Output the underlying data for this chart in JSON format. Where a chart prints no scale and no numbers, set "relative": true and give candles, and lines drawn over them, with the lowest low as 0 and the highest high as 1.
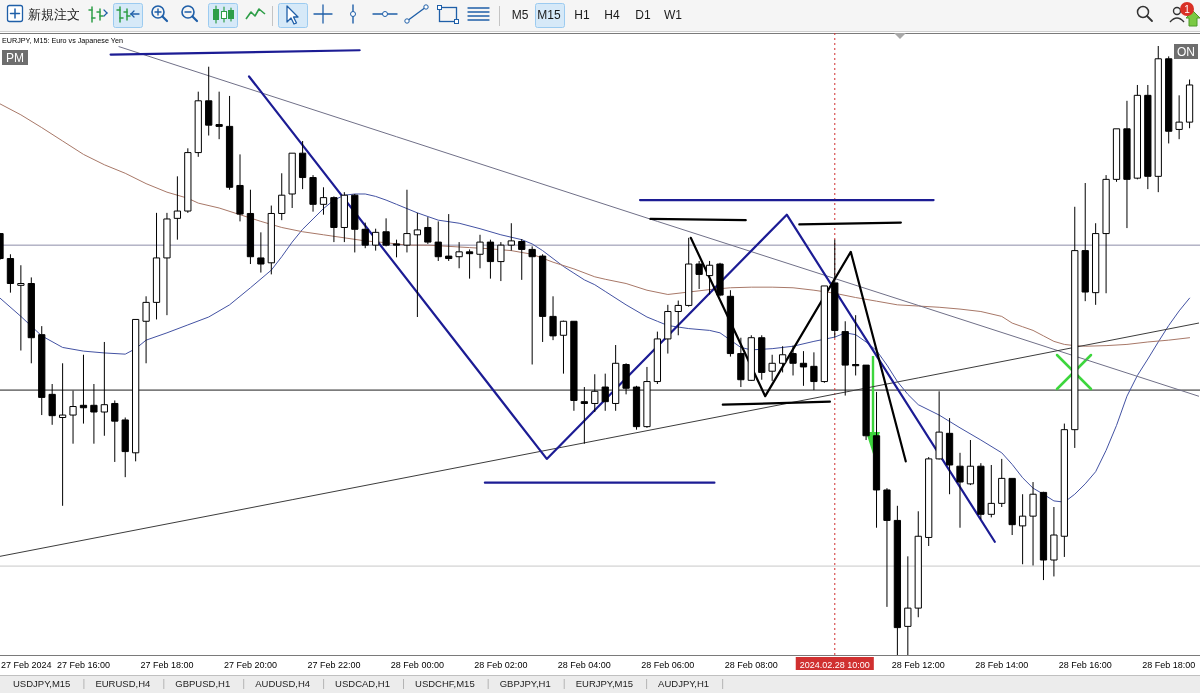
{
  "chart_data": [
    {
      "type": "other",
      "annotations": [
        "新規注文",
        "M5",
        "M15",
        "H1",
        "H4",
        "D1",
        "W1",
        "1"
      ]
    },
    {
      "type": "candlestick",
      "title": "EURJPY, M15: Euro vs Japanese Yen",
      "relative": true,
      "color": "#000000",
      "xlim": [
        "2024-02-27T14:00",
        "2024-02-28T18:45"
      ],
      "xticks": [
        {
          "value": "2024-02-27T14:00",
          "label": "27 Feb 2024"
        },
        {
          "value": "2024-02-27T16:00",
          "label": "27 Feb 16:00"
        },
        {
          "value": "2024-02-27T18:00",
          "label": "27 Feb 18:00"
        },
        {
          "value": "2024-02-27T20:00",
          "label": "27 Feb 20:00"
        },
        {
          "value": "2024-02-27T22:00",
          "label": "27 Feb 22:00"
        },
        {
          "value": "2024-02-28T00:00",
          "label": "28 Feb 00:00"
        },
        {
          "value": "2024-02-28T02:00",
          "label": "28 Feb 02:00"
        },
        {
          "value": "2024-02-28T04:00",
          "label": "28 Feb 04:00"
        },
        {
          "value": "2024-02-28T06:00",
          "label": "28 Feb 06:00"
        },
        {
          "value": "2024-02-28T08:00",
          "label": "28 Feb 08:00"
        },
        {
          "value": "2024-02-28T12:00",
          "label": "28 Feb 12:00"
        },
        {
          "value": "2024-02-28T14:00",
          "label": "28 Feb 14:00"
        },
        {
          "value": "2024-02-28T16:00",
          "label": "28 Feb 16:00"
        },
        {
          "value": "2024-02-28T18:00",
          "label": "28 Feb 18:00"
        }
      ],
      "x": [
        "2024-02-27T14:00",
        "2024-02-27T14:15",
        "2024-02-27T14:30",
        "2024-02-27T14:45",
        "2024-02-27T15:00",
        "2024-02-27T15:15",
        "2024-02-27T15:30",
        "2024-02-27T15:45",
        "2024-02-27T16:00",
        "2024-02-27T16:15",
        "2024-02-27T16:30",
        "2024-02-27T16:45",
        "2024-02-27T17:00",
        "2024-02-27T17:15",
        "2024-02-27T17:30",
        "2024-02-27T17:45",
        "2024-02-27T18:00",
        "2024-02-27T18:15",
        "2024-02-27T18:30",
        "2024-02-27T18:45",
        "2024-02-27T19:00",
        "2024-02-27T19:15",
        "2024-02-27T19:30",
        "2024-02-27T19:45",
        "2024-02-27T20:00",
        "2024-02-27T20:15",
        "2024-02-27T20:30",
        "2024-02-27T20:45",
        "2024-02-27T21:00",
        "2024-02-27T21:15",
        "2024-02-27T21:30",
        "2024-02-27T21:45",
        "2024-02-27T22:00",
        "2024-02-27T22:15",
        "2024-02-27T22:30",
        "2024-02-27T22:45",
        "2024-02-27T23:00",
        "2024-02-27T23:15",
        "2024-02-27T23:30",
        "2024-02-27T23:45",
        "2024-02-28T00:00",
        "2024-02-28T00:15",
        "2024-02-28T00:30",
        "2024-02-28T00:45",
        "2024-02-28T01:00",
        "2024-02-28T01:15",
        "2024-02-28T01:30",
        "2024-02-28T01:45",
        "2024-02-28T02:00",
        "2024-02-28T02:15",
        "2024-02-28T02:30",
        "2024-02-28T02:45",
        "2024-02-28T03:00",
        "2024-02-28T03:15",
        "2024-02-28T03:30",
        "2024-02-28T03:45",
        "2024-02-28T04:00",
        "2024-02-28T04:15",
        "2024-02-28T04:30",
        "2024-02-28T04:45",
        "2024-02-28T05:00",
        "2024-02-28T05:15",
        "2024-02-28T05:30",
        "2024-02-28T05:45",
        "2024-02-28T06:00",
        "2024-02-28T06:15",
        "2024-02-28T06:30",
        "2024-02-28T06:45",
        "2024-02-28T07:00",
        "2024-02-28T07:15",
        "2024-02-28T07:30",
        "2024-02-28T07:45",
        "2024-02-28T08:00",
        "2024-02-28T08:15",
        "2024-02-28T08:30",
        "2024-02-28T08:45",
        "2024-02-28T09:00",
        "2024-02-28T09:15",
        "2024-02-28T09:30",
        "2024-02-28T09:45",
        "2024-02-28T10:00",
        "2024-02-28T10:15",
        "2024-02-28T10:30",
        "2024-02-28T10:45",
        "2024-02-28T11:00",
        "2024-02-28T11:15",
        "2024-02-28T11:30",
        "2024-02-28T11:45",
        "2024-02-28T12:00",
        "2024-02-28T12:15",
        "2024-02-28T12:30",
        "2024-02-28T12:45",
        "2024-02-28T13:00",
        "2024-02-28T13:15",
        "2024-02-28T13:30",
        "2024-02-28T13:45",
        "2024-02-28T14:00",
        "2024-02-28T14:15",
        "2024-02-28T14:30",
        "2024-02-28T14:45",
        "2024-02-28T15:00",
        "2024-02-28T15:15",
        "2024-02-28T15:30",
        "2024-02-28T15:45",
        "2024-02-28T16:00",
        "2024-02-28T16:15",
        "2024-02-28T16:30",
        "2024-02-28T16:45",
        "2024-02-28T17:00",
        "2024-02-28T17:15",
        "2024-02-28T17:30",
        "2024-02-28T17:45",
        "2024-02-28T18:00",
        "2024-02-28T18:15",
        "2024-02-28T18:30"
      ],
      "ohlc": [
        [
          0.692,
          0.693,
          0.649,
          0.651
        ],
        [
          0.651,
          0.658,
          0.595,
          0.61
        ],
        [
          0.607,
          0.64,
          0.5,
          0.61
        ],
        [
          0.61,
          0.62,
          0.479,
          0.521
        ],
        [
          0.526,
          0.54,
          0.394,
          0.423
        ],
        [
          0.428,
          0.445,
          0.378,
          0.393
        ],
        [
          0.39,
          0.479,
          0.245,
          0.394
        ],
        [
          0.394,
          0.434,
          0.347,
          0.408
        ],
        [
          0.41,
          0.493,
          0.38,
          0.406
        ],
        [
          0.41,
          0.445,
          0.347,
          0.399
        ],
        [
          0.399,
          0.514,
          0.36,
          0.411
        ],
        [
          0.413,
          0.418,
          0.317,
          0.384
        ],
        [
          0.386,
          0.39,
          0.292,
          0.334
        ],
        [
          0.332,
          0.551,
          0.318,
          0.551
        ],
        [
          0.548,
          0.589,
          0.479,
          0.579
        ],
        [
          0.579,
          0.726,
          0.551,
          0.652
        ],
        [
          0.652,
          0.726,
          0.558,
          0.716
        ],
        [
          0.717,
          0.786,
          0.682,
          0.729
        ],
        [
          0.729,
          0.832,
          0.726,
          0.825
        ],
        [
          0.825,
          0.925,
          0.818,
          0.91
        ],
        [
          0.91,
          0.966,
          0.853,
          0.87
        ],
        [
          0.871,
          0.925,
          0.847,
          0.868
        ],
        [
          0.868,
          0.918,
          0.764,
          0.768
        ],
        [
          0.771,
          0.822,
          0.712,
          0.724
        ],
        [
          0.725,
          0.764,
          0.642,
          0.654
        ],
        [
          0.652,
          0.694,
          0.628,
          0.642
        ],
        [
          0.644,
          0.738,
          0.625,
          0.725
        ],
        [
          0.725,
          0.791,
          0.714,
          0.755
        ],
        [
          0.757,
          0.824,
          0.734,
          0.824
        ],
        [
          0.824,
          0.844,
          0.765,
          0.784
        ],
        [
          0.784,
          0.788,
          0.728,
          0.74
        ],
        [
          0.74,
          0.768,
          0.723,
          0.751
        ],
        [
          0.751,
          0.753,
          0.678,
          0.702
        ],
        [
          0.702,
          0.76,
          0.678,
          0.755
        ],
        [
          0.755,
          0.757,
          0.661,
          0.699
        ],
        [
          0.699,
          0.71,
          0.668,
          0.673
        ],
        [
          0.673,
          0.7,
          0.664,
          0.694
        ],
        [
          0.695,
          0.717,
          0.671,
          0.673
        ],
        [
          0.675,
          0.682,
          0.653,
          0.673
        ],
        [
          0.673,
          0.764,
          0.661,
          0.692
        ],
        [
          0.69,
          0.726,
          0.555,
          0.698
        ],
        [
          0.702,
          0.719,
          0.675,
          0.678
        ],
        [
          0.678,
          0.712,
          0.647,
          0.654
        ],
        [
          0.655,
          0.724,
          0.647,
          0.651
        ],
        [
          0.654,
          0.678,
          0.635,
          0.662
        ],
        [
          0.662,
          0.666,
          0.618,
          0.659
        ],
        [
          0.658,
          0.69,
          0.635,
          0.678
        ],
        [
          0.678,
          0.682,
          0.618,
          0.646
        ],
        [
          0.646,
          0.678,
          0.614,
          0.673
        ],
        [
          0.673,
          0.709,
          0.664,
          0.68
        ],
        [
          0.679,
          0.683,
          0.616,
          0.666
        ],
        [
          0.666,
          0.671,
          0.477,
          0.654
        ],
        [
          0.655,
          0.658,
          0.514,
          0.556
        ],
        [
          0.556,
          0.589,
          0.517,
          0.524
        ],
        [
          0.525,
          0.549,
          0.462,
          0.548
        ],
        [
          0.548,
          0.548,
          0.401,
          0.418
        ],
        [
          0.416,
          0.44,
          0.347,
          0.413
        ],
        [
          0.413,
          0.461,
          0.399,
          0.433
        ],
        [
          0.44,
          0.462,
          0.401,
          0.416
        ],
        [
          0.413,
          0.509,
          0.401,
          0.479
        ],
        [
          0.477,
          0.479,
          0.428,
          0.438
        ],
        [
          0.44,
          0.442,
          0.37,
          0.375
        ],
        [
          0.375,
          0.473,
          0.373,
          0.449
        ],
        [
          0.449,
          0.531,
          0.445,
          0.519
        ],
        [
          0.519,
          0.575,
          0.495,
          0.564
        ],
        [
          0.564,
          0.582,
          0.525,
          0.574
        ],
        [
          0.574,
          0.685,
          0.572,
          0.642
        ],
        [
          0.642,
          0.647,
          0.601,
          0.625
        ],
        [
          0.623,
          0.647,
          0.592,
          0.64
        ],
        [
          0.642,
          0.644,
          0.589,
          0.591
        ],
        [
          0.589,
          0.599,
          0.49,
          0.495
        ],
        [
          0.495,
          0.521,
          0.44,
          0.452
        ],
        [
          0.451,
          0.525,
          0.45,
          0.521
        ],
        [
          0.521,
          0.525,
          0.452,
          0.464
        ],
        [
          0.466,
          0.493,
          0.45,
          0.479
        ],
        [
          0.479,
          0.507,
          0.464,
          0.493
        ],
        [
          0.495,
          0.508,
          0.459,
          0.479
        ],
        [
          0.479,
          0.499,
          0.442,
          0.473
        ],
        [
          0.474,
          0.497,
          0.435,
          0.449
        ],
        [
          0.449,
          0.606,
          0.447,
          0.606
        ],
        [
          0.611,
          0.682,
          0.521,
          0.533
        ],
        [
          0.531,
          0.548,
          0.426,
          0.476
        ],
        [
          0.477,
          0.558,
          0.459,
          0.475
        ],
        [
          0.476,
          0.476,
          0.353,
          0.36
        ],
        [
          0.36,
          0.432,
          0.209,
          0.271
        ],
        [
          0.271,
          0.274,
          0.079,
          0.221
        ],
        [
          0.221,
          0.245,
          0,
          0.045
        ],
        [
          0.047,
          0.162,
          0,
          0.077
        ],
        [
          0.077,
          0.236,
          0.062,
          0.195
        ],
        [
          0.193,
          0.325,
          0.179,
          0.322
        ],
        [
          0.322,
          0.433,
          0.321,
          0.366
        ],
        [
          0.364,
          0.389,
          0.264,
          0.312
        ],
        [
          0.31,
          0.332,
          0.209,
          0.284
        ],
        [
          0.281,
          0.353,
          0.279,
          0.31
        ],
        [
          0.31,
          0.315,
          0.223,
          0.231
        ],
        [
          0.231,
          0.312,
          0.226,
          0.249
        ],
        [
          0.249,
          0.322,
          0.243,
          0.29
        ],
        [
          0.29,
          0.29,
          0.197,
          0.214
        ],
        [
          0.212,
          0.264,
          0.149,
          0.228
        ],
        [
          0.228,
          0.284,
          0.147,
          0.264
        ],
        [
          0.267,
          0.268,
          0.123,
          0.156
        ],
        [
          0.156,
          0.243,
          0.129,
          0.197
        ],
        [
          0.195,
          0.38,
          0.161,
          0.37
        ],
        [
          0.37,
          0.736,
          0.34,
          0.664
        ],
        [
          0.664,
          0.775,
          0.581,
          0.596
        ],
        [
          0.595,
          0.709,
          0.575,
          0.692
        ],
        [
          0.692,
          0.788,
          0.594,
          0.781
        ],
        [
          0.781,
          0.864,
          0.777,
          0.864
        ],
        [
          0.864,
          0.91,
          0.701,
          0.781
        ],
        [
          0.783,
          0.936,
          0.781,
          0.919
        ],
        [
          0.919,
          0.936,
          0.765,
          0.786
        ],
        [
          0.786,
          1,
          0.76,
          0.979
        ],
        [
          0.979,
          0.983,
          0.84,
          0.86
        ],
        [
          0.863,
          0.919,
          0.847,
          0.875
        ],
        [
          0.875,
          0.945,
          0.865,
          0.936
        ]
      ],
      "series": [
        {
          "type": "line",
          "color": "#4352a3",
          "x": [
            "2024-02-27T14:00",
            "2024-02-27T14:30",
            "2024-02-27T15:00",
            "2024-02-27T15:30",
            "2024-02-27T16:00",
            "2024-02-27T16:30",
            "2024-02-27T17:00",
            "2024-02-27T17:15",
            "2024-02-27T17:30",
            "2024-02-27T18:00",
            "2024-02-27T18:30",
            "2024-02-27T19:00",
            "2024-02-27T19:30",
            "2024-02-27T20:00",
            "2024-02-27T20:30",
            "2024-02-27T20:45",
            "2024-02-27T21:00",
            "2024-02-27T21:15",
            "2024-02-27T21:30",
            "2024-02-27T21:45",
            "2024-02-27T22:00",
            "2024-02-27T22:15",
            "2024-02-27T22:30",
            "2024-02-27T22:45",
            "2024-02-27T23:00",
            "2024-02-27T23:15",
            "2024-02-27T23:30",
            "2024-02-27T23:45",
            "2024-02-28T00:00",
            "2024-02-28T00:30",
            "2024-02-28T01:00",
            "2024-02-28T01:30",
            "2024-02-28T02:00",
            "2024-02-28T02:30",
            "2024-02-28T02:45",
            "2024-02-28T03:00",
            "2024-02-28T03:15",
            "2024-02-28T03:30",
            "2024-02-28T03:45",
            "2024-02-28T04:00",
            "2024-02-28T04:15",
            "2024-02-28T04:30",
            "2024-02-28T05:00",
            "2024-02-28T05:30",
            "2024-02-28T05:45",
            "2024-02-28T06:00",
            "2024-02-28T06:30",
            "2024-02-28T07:00",
            "2024-02-28T07:15",
            "2024-02-28T07:30",
            "2024-02-28T07:45",
            "2024-02-28T08:00",
            "2024-02-28T08:30",
            "2024-02-28T09:00",
            "2024-02-28T09:30",
            "2024-02-28T10:00",
            "2024-02-28T10:15",
            "2024-02-28T10:30",
            "2024-02-28T10:45",
            "2024-02-28T11:00",
            "2024-02-28T11:15",
            "2024-02-28T11:30",
            "2024-02-28T11:45",
            "2024-02-28T12:00",
            "2024-02-28T12:30",
            "2024-02-28T13:00",
            "2024-02-28T13:30",
            "2024-02-28T14:00",
            "2024-02-28T14:15",
            "2024-02-28T14:30",
            "2024-02-28T14:45",
            "2024-02-28T15:00",
            "2024-02-28T15:15",
            "2024-02-28T15:30",
            "2024-02-28T15:45",
            "2024-02-28T16:00",
            "2024-02-28T16:15",
            "2024-02-28T16:30",
            "2024-02-28T16:45",
            "2024-02-28T17:00",
            "2024-02-28T17:15",
            "2024-02-28T17:30",
            "2024-02-28T17:45",
            "2024-02-28T18:00",
            "2024-02-28T18:15",
            "2024-02-28T18:30"
          ],
          "values": [
            0.586,
            0.556,
            0.524,
            0.505,
            0.499,
            0.496,
            0.494,
            0.503,
            0.517,
            0.529,
            0.542,
            0.555,
            0.575,
            0.603,
            0.632,
            0.654,
            0.678,
            0.699,
            0.716,
            0.733,
            0.747,
            0.755,
            0.757,
            0.757,
            0.753,
            0.747,
            0.74,
            0.733,
            0.726,
            0.714,
            0.709,
            0.7,
            0.69,
            0.682,
            0.675,
            0.664,
            0.651,
            0.638,
            0.627,
            0.616,
            0.608,
            0.597,
            0.575,
            0.555,
            0.548,
            0.541,
            0.536,
            0.533,
            0.529,
            0.517,
            0.505,
            0.501,
            0.503,
            0.507,
            0.515,
            0.522,
            0.529,
            0.526,
            0.514,
            0.5,
            0.476,
            0.449,
            0.428,
            0.411,
            0.394,
            0.373,
            0.353,
            0.332,
            0.313,
            0.291,
            0.274,
            0.264,
            0.253,
            0.251,
            0.264,
            0.281,
            0.301,
            0.336,
            0.377,
            0.425,
            0.459,
            0.486,
            0.514,
            0.541,
            0.565,
            0.586
          ]
        },
        {
          "type": "line",
          "color": "#a87868",
          "x": [
            "2024-02-27T14:00",
            "2024-02-27T14:30",
            "2024-02-27T15:00",
            "2024-02-27T15:30",
            "2024-02-27T16:00",
            "2024-02-27T16:30",
            "2024-02-27T17:00",
            "2024-02-27T17:30",
            "2024-02-27T18:00",
            "2024-02-27T18:30",
            "2024-02-27T18:45",
            "2024-02-27T19:15",
            "2024-02-27T19:45",
            "2024-02-27T20:15",
            "2024-02-27T20:45",
            "2024-02-27T21:15",
            "2024-02-27T21:45",
            "2024-02-27T22:15",
            "2024-02-27T22:45",
            "2024-02-27T23:15",
            "2024-02-27T23:45",
            "2024-02-28T00:15",
            "2024-02-28T00:45",
            "2024-02-28T01:15",
            "2024-02-28T01:45",
            "2024-02-28T02:15",
            "2024-02-28T02:45",
            "2024-02-28T03:15",
            "2024-02-28T03:45",
            "2024-02-28T04:15",
            "2024-02-28T04:30",
            "2024-02-28T05:00",
            "2024-02-28T05:30",
            "2024-02-28T06:00",
            "2024-02-28T06:30",
            "2024-02-28T07:00",
            "2024-02-28T07:30",
            "2024-02-28T08:00",
            "2024-02-28T08:30",
            "2024-02-28T09:00",
            "2024-02-28T09:30",
            "2024-02-28T10:00",
            "2024-02-28T10:30",
            "2024-02-28T11:00",
            "2024-02-28T11:30",
            "2024-02-28T12:00",
            "2024-02-28T12:30",
            "2024-02-28T13:00",
            "2024-02-28T13:30",
            "2024-02-28T14:00",
            "2024-02-28T14:15",
            "2024-02-28T14:30",
            "2024-02-28T14:45",
            "2024-02-28T15:00",
            "2024-02-28T15:15",
            "2024-02-28T15:30",
            "2024-02-28T15:45",
            "2024-02-28T16:00",
            "2024-02-28T16:30",
            "2024-02-28T17:00",
            "2024-02-28T17:30",
            "2024-02-28T18:00",
            "2024-02-28T18:30"
          ],
          "values": [
            0.905,
            0.887,
            0.866,
            0.844,
            0.822,
            0.805,
            0.791,
            0.774,
            0.76,
            0.75,
            0.742,
            0.734,
            0.723,
            0.712,
            0.702,
            0.695,
            0.69,
            0.685,
            0.68,
            0.677,
            0.673,
            0.673,
            0.671,
            0.669,
            0.667,
            0.664,
            0.658,
            0.645,
            0.634,
            0.621,
            0.617,
            0.61,
            0.599,
            0.592,
            0.596,
            0.6,
            0.603,
            0.604,
            0.604,
            0.603,
            0.599,
            0.594,
            0.587,
            0.581,
            0.575,
            0.573,
            0.571,
            0.568,
            0.564,
            0.556,
            0.545,
            0.539,
            0.533,
            0.524,
            0.515,
            0.51,
            0.508,
            0.507,
            0.508,
            0.51,
            0.514,
            0.517,
            0.521
          ]
        },
        {
          "type": "line",
          "color": "#707088",
          "x": [
            "2024-02-27T16:51",
            "2024-02-27T23:30",
            "2024-02-28T05:45",
            "2024-02-28T12:00",
            "2024-02-28T18:43"
          ],
          "values": [
            0.999,
            0.851,
            0.712,
            0.574,
            0.425
          ]
        },
        {
          "type": "line",
          "color": "#3c3c3c",
          "x": [
            "2024-02-27T14:00",
            "2024-02-27T21:00",
            "2024-02-28T04:30",
            "2024-02-28T12:00",
            "2024-02-28T18:43"
          ],
          "values": [
            0.162,
            0.255,
            0.355,
            0.455,
            0.545
          ]
        },
        {
          "type": "line",
          "color": "#1c1c94",
          "x": [
            "2024-02-27T19:58",
            "2024-02-28T03:06",
            "2024-02-28T08:51",
            "2024-02-28T13:50"
          ],
          "values": [
            0.95,
            0.322,
            0.723,
            0.186
          ]
        },
        {
          "type": "line",
          "color": "#000000",
          "x": [
            "2024-02-28T06:33",
            "2024-02-28T08:20",
            "2024-02-28T10:23",
            "2024-02-28T11:42"
          ],
          "values": [
            0.685,
            0.425,
            0.662,
            0.318
          ]
        },
        {
          "type": "line",
          "color": "#1c1c94",
          "x": [
            "2024-02-27T16:39",
            "2024-02-27T22:37"
          ],
          "values": [
            0.986,
            0.993
          ]
        },
        {
          "type": "line",
          "color": "#1c1c94",
          "x": [
            "2024-02-28T05:20",
            "2024-02-28T12:22"
          ],
          "values": [
            0.747,
            0.747
          ]
        },
        {
          "type": "line",
          "color": "#1c1c94",
          "x": [
            "2024-02-28T01:37",
            "2024-02-28T07:07"
          ],
          "values": [
            0.283,
            0.283
          ]
        },
        {
          "type": "line",
          "color": "#000000",
          "x": [
            "2024-02-28T05:35",
            "2024-02-28T07:52"
          ],
          "values": [
            0.716,
            0.714
          ]
        },
        {
          "type": "line",
          "color": "#000000",
          "x": [
            "2024-02-28T09:09",
            "2024-02-28T11:35"
          ],
          "values": [
            0.707,
            0.71
          ]
        },
        {
          "type": "line",
          "color": "#000000",
          "x": [
            "2024-02-28T07:19",
            "2024-02-28T09:53"
          ],
          "values": [
            0.411,
            0.416
          ]
        }
      ],
      "ref_lines": [
        {
          "axis": "y",
          "value": 0.673,
          "color": "#8c8ca8"
        },
        {
          "axis": "y",
          "value": 0.435,
          "color": "#1e1e1e"
        },
        {
          "axis": "y",
          "value": 0.146,
          "color": "#c8c8c8"
        },
        {
          "axis": "x",
          "value": "2024-02-28T10:00",
          "label": "2024.02.28 10:00",
          "color": "#d03030",
          "line_style": "dotted"
        }
      ],
      "annotations": [
        "PM",
        "ON"
      ]
    },
    {
      "type": "other",
      "annotations": [
        "USDJPY,M15",
        "EURUSD,H4",
        "GBPUSD,H1",
        "AUDUSD,H4",
        "USDCAD,H1",
        "USDCHF,M15",
        "GBPJPY,H1",
        "EURJPY,M15",
        "AUDJPY,H1"
      ]
    }
  ]
}
